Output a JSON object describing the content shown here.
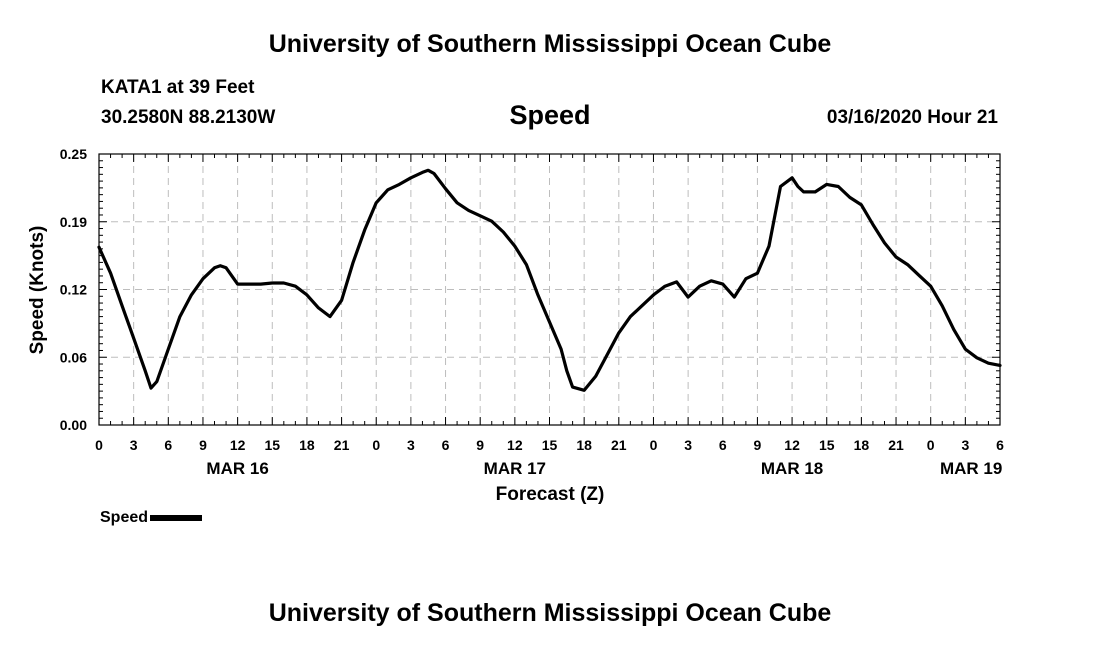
{
  "header": {
    "title_top": "University of Southern Mississippi Ocean Cube",
    "station": "KATA1 at 39 Feet",
    "coords": "30.2580N 88.2130W",
    "subtitle": "Speed",
    "datetime": "03/16/2020 Hour 21",
    "title_bottom": "University of Southern Mississippi Ocean Cube"
  },
  "legend": {
    "label": "Speed",
    "color": "#000000"
  },
  "chart_data": {
    "type": "line",
    "title": "Speed",
    "xlabel": "Forecast (Z)",
    "ylabel": "Speed (Knots)",
    "ylim": [
      0,
      0.25
    ],
    "xlim": [
      0,
      78
    ],
    "grid": true,
    "y_ticks": [
      {
        "value": 0.0,
        "label": "0.00"
      },
      {
        "value": 0.0625,
        "label": "0.06"
      },
      {
        "value": 0.125,
        "label": "0.12"
      },
      {
        "value": 0.1875,
        "label": "0.19"
      },
      {
        "value": 0.25,
        "label": "0.25"
      }
    ],
    "x_ticks": [
      {
        "hour": 0,
        "label": "0"
      },
      {
        "hour": 3,
        "label": "3"
      },
      {
        "hour": 6,
        "label": "6"
      },
      {
        "hour": 9,
        "label": "9"
      },
      {
        "hour": 12,
        "label": "12"
      },
      {
        "hour": 15,
        "label": "15"
      },
      {
        "hour": 18,
        "label": "18"
      },
      {
        "hour": 21,
        "label": "21"
      },
      {
        "hour": 24,
        "label": "0"
      },
      {
        "hour": 27,
        "label": "3"
      },
      {
        "hour": 30,
        "label": "6"
      },
      {
        "hour": 33,
        "label": "9"
      },
      {
        "hour": 36,
        "label": "12"
      },
      {
        "hour": 39,
        "label": "15"
      },
      {
        "hour": 42,
        "label": "18"
      },
      {
        "hour": 45,
        "label": "21"
      },
      {
        "hour": 48,
        "label": "0"
      },
      {
        "hour": 51,
        "label": "3"
      },
      {
        "hour": 54,
        "label": "6"
      },
      {
        "hour": 57,
        "label": "9"
      },
      {
        "hour": 60,
        "label": "12"
      },
      {
        "hour": 63,
        "label": "15"
      },
      {
        "hour": 66,
        "label": "18"
      },
      {
        "hour": 69,
        "label": "21"
      },
      {
        "hour": 72,
        "label": "0"
      },
      {
        "hour": 75,
        "label": "3"
      },
      {
        "hour": 78,
        "label": "6"
      }
    ],
    "date_labels": [
      {
        "hour": 12,
        "label": "MAR 16"
      },
      {
        "hour": 36,
        "label": "MAR 17"
      },
      {
        "hour": 60,
        "label": "MAR 18"
      },
      {
        "hour": 75.5,
        "label": "MAR 19"
      }
    ],
    "series": [
      {
        "name": "Speed",
        "x": [
          0,
          1,
          2,
          3,
          4,
          4.5,
          5,
          6,
          7,
          8,
          9,
          10,
          10.5,
          11,
          12,
          13,
          14,
          15,
          16,
          17,
          18,
          19,
          20,
          21,
          22,
          23,
          24,
          25,
          26,
          27,
          28,
          28.5,
          29,
          30,
          31,
          32,
          33,
          34,
          35,
          36,
          37,
          38,
          39,
          40,
          40.5,
          41,
          42,
          43,
          44,
          45,
          46,
          47,
          48,
          49,
          50,
          51,
          52,
          53,
          54,
          55,
          56,
          57,
          58,
          59,
          60,
          60.5,
          61,
          62,
          63,
          64,
          65,
          66,
          67,
          68,
          69,
          70,
          71,
          72,
          73,
          74,
          75,
          76,
          77,
          78
        ],
        "y": [
          0.164,
          0.14,
          0.11,
          0.08,
          0.05,
          0.034,
          0.04,
          0.07,
          0.1,
          0.12,
          0.135,
          0.145,
          0.147,
          0.145,
          0.13,
          0.13,
          0.13,
          0.131,
          0.131,
          0.128,
          0.12,
          0.108,
          0.1,
          0.115,
          0.15,
          0.18,
          0.205,
          0.217,
          0.222,
          0.228,
          0.233,
          0.235,
          0.232,
          0.218,
          0.205,
          0.198,
          0.193,
          0.188,
          0.178,
          0.165,
          0.148,
          0.12,
          0.095,
          0.07,
          0.05,
          0.035,
          0.032,
          0.045,
          0.065,
          0.085,
          0.1,
          0.11,
          0.12,
          0.128,
          0.132,
          0.118,
          0.128,
          0.133,
          0.13,
          0.118,
          0.135,
          0.14,
          0.165,
          0.22,
          0.228,
          0.22,
          0.215,
          0.215,
          0.222,
          0.22,
          0.21,
          0.203,
          0.185,
          0.168,
          0.155,
          0.148,
          0.138,
          0.128,
          0.11,
          0.088,
          0.07,
          0.062,
          0.057,
          0.055
        ]
      }
    ]
  }
}
